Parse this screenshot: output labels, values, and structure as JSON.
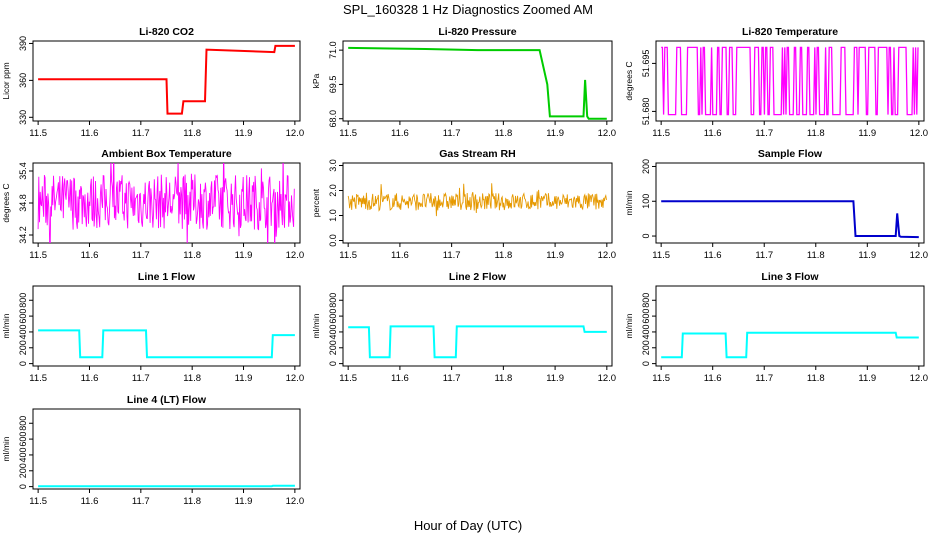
{
  "figure": {
    "title": "SPL_160328 1 Hz Diagnostics Zoomed AM",
    "xlabel": "Hour of Day (UTC)"
  },
  "chart_data": [
    {
      "type": "line",
      "title": "Li-820 CO2",
      "ylabel": "Licor ppm",
      "color": "#ff0000",
      "xlim": [
        11.49,
        12.01
      ],
      "ylim": [
        327,
        392
      ],
      "xticks": [
        "11.5",
        "11.6",
        "11.7",
        "11.8",
        "11.9",
        "12.0"
      ],
      "yticks": [
        330,
        360,
        390
      ],
      "series": [
        {
          "x": [
            11.5,
            11.75,
            11.752,
            11.78,
            11.783,
            11.825,
            11.828,
            11.96,
            11.962,
            12.0
          ],
          "y": [
            361,
            361,
            333,
            333,
            343,
            343,
            385,
            383,
            388,
            388
          ]
        }
      ]
    },
    {
      "type": "line",
      "title": "Li-820 Pressure",
      "ylabel": "kPa",
      "color": "#00cc00",
      "xlim": [
        11.49,
        12.01
      ],
      "ylim": [
        67.9,
        71.4
      ],
      "xticks": [
        "11.5",
        "11.6",
        "11.7",
        "11.8",
        "11.9",
        "12.0"
      ],
      "yticks": [
        68.0,
        69.5,
        71.0
      ],
      "ytick_labels": [
        "68.0",
        "69.5",
        "71.0"
      ],
      "series": [
        {
          "x": [
            11.5,
            11.65,
            11.75,
            11.87,
            11.885,
            11.89,
            11.955,
            11.958,
            11.962,
            11.965,
            11.975,
            12.0
          ],
          "y": [
            71.1,
            71.05,
            71.0,
            71.0,
            69.5,
            68.1,
            68.1,
            69.7,
            68.1,
            68.0,
            68.0,
            68.0
          ]
        }
      ]
    },
    {
      "type": "line",
      "title": "Li-820 Temperature",
      "ylabel": "degrees C",
      "color": "#ff00ff",
      "xlim": [
        11.49,
        12.01
      ],
      "ylim": [
        51.677,
        51.702
      ],
      "xticks": [
        "11.5",
        "11.6",
        "11.7",
        "11.8",
        "11.9",
        "12.0"
      ],
      "yticks": [
        51.68,
        51.695
      ],
      "ytick_labels": [
        "51.680",
        "51.695"
      ],
      "series": [
        {
          "name": "",
          "x": [],
          "y": []
        }
      ],
      "levels": [
        51.679,
        51.7
      ]
    },
    {
      "type": "line",
      "title": "Ambient Box Temperature",
      "ylabel": "degrees C",
      "color": "#ff00ff",
      "xlim": [
        11.49,
        12.01
      ],
      "ylim": [
        34.05,
        35.55
      ],
      "xticks": [
        "11.5",
        "11.6",
        "11.7",
        "11.8",
        "11.9",
        "12.0"
      ],
      "yticks": [
        34.2,
        34.8,
        35.4
      ],
      "ytick_labels": [
        "34.2",
        "34.8",
        "35.4"
      ],
      "band": {
        "low": 34.3,
        "high": 35.35
      }
    },
    {
      "type": "line",
      "title": "Gas Stream RH",
      "ylabel": "percent",
      "color": "#e69900",
      "xlim": [
        11.49,
        12.01
      ],
      "ylim": [
        -0.1,
        3.1
      ],
      "xticks": [
        "11.5",
        "11.6",
        "11.7",
        "11.8",
        "11.9",
        "12.0"
      ],
      "yticks": [
        0.0,
        1.0,
        2.0,
        3.0
      ],
      "ytick_labels": [
        "0.0",
        "1.0",
        "2.0",
        "3.0"
      ],
      "band": {
        "low": 1.2,
        "high": 1.9
      }
    },
    {
      "type": "line",
      "title": "Sample Flow",
      "ylabel": "ml/min",
      "color": "#0000cc",
      "xlim": [
        11.49,
        12.01
      ],
      "ylim": [
        -20,
        210
      ],
      "xticks": [
        "11.5",
        "11.6",
        "11.7",
        "11.8",
        "11.9",
        "12.0"
      ],
      "yticks": [
        0,
        100,
        200
      ],
      "series": [
        {
          "x": [
            11.5,
            11.873,
            11.877,
            11.955,
            11.958,
            11.962,
            11.965,
            12.0
          ],
          "y": [
            100,
            100,
            0,
            0,
            65,
            0,
            -2,
            -3
          ]
        }
      ]
    },
    {
      "type": "line",
      "title": "Line 1 Flow",
      "ylabel": "ml/min",
      "color": "#00ffff",
      "xlim": [
        11.49,
        12.01
      ],
      "ylim": [
        -30,
        980
      ],
      "xticks": [
        "11.5",
        "11.6",
        "11.7",
        "11.8",
        "11.9",
        "12.0"
      ],
      "yticks": [
        0,
        200,
        400,
        600,
        800
      ],
      "series": [
        {
          "x": [
            11.5,
            11.58,
            11.582,
            11.625,
            11.627,
            11.71,
            11.712,
            11.955,
            11.957,
            12.0
          ],
          "y": [
            420,
            420,
            80,
            80,
            420,
            420,
            80,
            80,
            360,
            360
          ]
        }
      ]
    },
    {
      "type": "line",
      "title": "Line 2 Flow",
      "ylabel": "ml/min",
      "color": "#00ffff",
      "xlim": [
        11.49,
        12.01
      ],
      "ylim": [
        -30,
        980
      ],
      "xticks": [
        "11.5",
        "11.6",
        "11.7",
        "11.8",
        "11.9",
        "12.0"
      ],
      "yticks": [
        0,
        200,
        400,
        600,
        800
      ],
      "series": [
        {
          "x": [
            11.5,
            11.54,
            11.542,
            11.58,
            11.582,
            11.665,
            11.667,
            11.708,
            11.71,
            11.955,
            11.957,
            12.0
          ],
          "y": [
            460,
            460,
            80,
            80,
            470,
            470,
            80,
            80,
            470,
            470,
            400,
            400
          ]
        }
      ]
    },
    {
      "type": "line",
      "title": "Line 3 Flow",
      "ylabel": "ml/min",
      "color": "#00ffff",
      "xlim": [
        11.49,
        12.01
      ],
      "ylim": [
        -30,
        980
      ],
      "xticks": [
        "11.5",
        "11.6",
        "11.7",
        "11.8",
        "11.9",
        "12.0"
      ],
      "yticks": [
        0,
        200,
        400,
        600,
        800
      ],
      "series": [
        {
          "x": [
            11.5,
            11.54,
            11.542,
            11.625,
            11.627,
            11.665,
            11.667,
            11.955,
            11.957,
            12.0
          ],
          "y": [
            80,
            80,
            380,
            380,
            80,
            80,
            390,
            390,
            330,
            330
          ]
        }
      ]
    },
    {
      "type": "line",
      "title": "Line 4 (LT) Flow",
      "ylabel": "ml/min",
      "color": "#00ffff",
      "xlim": [
        11.49,
        12.01
      ],
      "ylim": [
        -30,
        980
      ],
      "xticks": [
        "11.5",
        "11.6",
        "11.7",
        "11.8",
        "11.9",
        "12.0"
      ],
      "yticks": [
        0,
        200,
        400,
        600,
        800
      ],
      "series": [
        {
          "x": [
            11.5,
            11.955,
            11.957,
            12.0
          ],
          "y": [
            5,
            5,
            10,
            10
          ]
        }
      ]
    }
  ]
}
